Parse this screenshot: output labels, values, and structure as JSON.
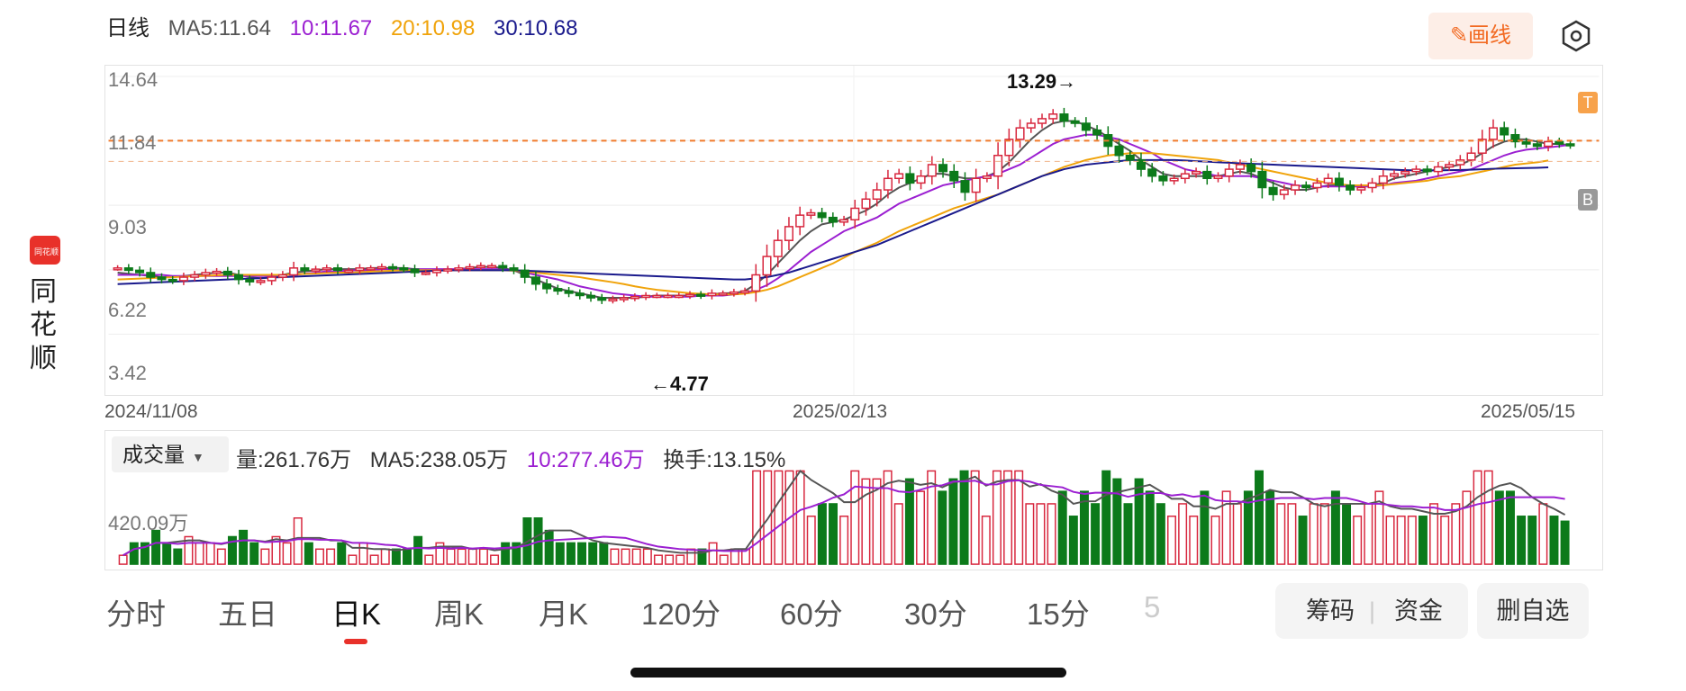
{
  "brand": {
    "logo_text": "同花顺",
    "name": "同花顺"
  },
  "header": {
    "period_label": "日线",
    "ma": [
      {
        "label": "MA5:11.64",
        "color": "#555555"
      },
      {
        "label": "10:11.67",
        "color": "#9b1fd1"
      },
      {
        "label": "20:10.98",
        "color": "#f0a30a"
      },
      {
        "label": "30:10.68",
        "color": "#1a1a8c"
      }
    ],
    "draw_label": "画线",
    "settings_icon": "hexagon-settings-icon"
  },
  "price_axis": {
    "labels": [
      "14.64",
      "11.84",
      "9.03",
      "6.22",
      "3.42"
    ]
  },
  "date_axis": {
    "labels": [
      "2024/11/08",
      "2025/02/13",
      "2025/05/15"
    ]
  },
  "annotations": {
    "high": "13.29→",
    "low": "←4.77",
    "marker_t": "T",
    "marker_b": "B"
  },
  "volume": {
    "selector": "成交量",
    "legend": [
      {
        "label": "量:261.76万",
        "color": "#333333"
      },
      {
        "label": "MA5:238.05万",
        "color": "#333333"
      },
      {
        "label": "10:277.46万",
        "color": "#9b1fd1"
      },
      {
        "label": "换手:13.15%",
        "color": "#333333"
      }
    ],
    "axis_label": "420.09万"
  },
  "tabs": [
    {
      "label": "分时",
      "active": false
    },
    {
      "label": "五日",
      "active": false
    },
    {
      "label": "日K",
      "active": true
    },
    {
      "label": "周K",
      "active": false
    },
    {
      "label": "月K",
      "active": false
    },
    {
      "label": "120分",
      "active": false
    },
    {
      "label": "60分",
      "active": false
    },
    {
      "label": "30分",
      "active": false
    },
    {
      "label": "15分",
      "active": false
    },
    {
      "label": "5",
      "active": false
    }
  ],
  "actions": {
    "chips": "筹码",
    "funds": "资金",
    "remove_watch": "删自选"
  },
  "colors": {
    "up": "#d7263d",
    "down": "#0c7a1a",
    "accent": "#f26a22",
    "ma5": "#555555",
    "ma10": "#9b1fd1",
    "ma20": "#f0a30a",
    "ma30": "#1a1a8c"
  },
  "chart_data": {
    "type": "candlestick",
    "ylim": [
      3.42,
      14.64
    ],
    "y_ticks": [
      14.64,
      11.84,
      9.03,
      6.22,
      3.42
    ],
    "x_ticks": [
      "2024/11/08",
      "2025/02/13",
      "2025/05/15"
    ],
    "reference_line": 11.84,
    "high": 13.29,
    "low": 4.77,
    "close": [
      6.3,
      6.2,
      6.1,
      5.9,
      5.8,
      5.75,
      5.9,
      6.0,
      6.1,
      6.15,
      6.0,
      5.8,
      5.7,
      5.75,
      5.9,
      6.0,
      6.3,
      6.2,
      6.25,
      6.3,
      6.2,
      6.2,
      6.3,
      6.3,
      6.35,
      6.3,
      6.25,
      6.1,
      6.1,
      6.2,
      6.25,
      6.3,
      6.35,
      6.4,
      6.4,
      6.3,
      6.2,
      5.9,
      5.6,
      5.4,
      5.3,
      5.2,
      5.1,
      5.0,
      4.9,
      4.95,
      5.0,
      5.05,
      5.1,
      5.1,
      5.1,
      5.1,
      5.15,
      5.1,
      5.2,
      5.2,
      5.25,
      5.3,
      6.0,
      6.8,
      7.5,
      8.1,
      8.6,
      8.7,
      8.5,
      8.3,
      8.4,
      8.9,
      9.3,
      9.7,
      10.2,
      10.4,
      10.0,
      10.3,
      10.8,
      10.5,
      10.1,
      9.6,
      10.2,
      10.3,
      11.2,
      11.9,
      12.4,
      12.6,
      12.8,
      13.0,
      12.7,
      12.6,
      12.3,
      12.1,
      11.6,
      11.2,
      11.0,
      10.6,
      10.3,
      10.1,
      10.2,
      10.4,
      10.5,
      10.2,
      10.3,
      10.6,
      10.8,
      10.5,
      9.8,
      9.5,
      9.7,
      9.9,
      9.8,
      10.0,
      10.2,
      9.9,
      9.7,
      9.8,
      10.0,
      10.3,
      10.4,
      10.5,
      10.6,
      10.5,
      10.7,
      10.8,
      11.0,
      11.3,
      11.9,
      12.4,
      12.1,
      11.8,
      11.7,
      11.6,
      11.8,
      11.7,
      11.64
    ],
    "series": [
      {
        "name": "MA5",
        "values": [
          6.1,
          6.05,
          6.0,
          5.95,
          5.9,
          5.9,
          5.95,
          6.0,
          6.05,
          6.1,
          6.1,
          6.0,
          5.9,
          5.85,
          5.9,
          6.0,
          6.1,
          6.15,
          6.2,
          6.25,
          6.25,
          6.25,
          6.25,
          6.3,
          6.3,
          6.3,
          6.3,
          6.25,
          6.2,
          6.2,
          6.2,
          6.25,
          6.3,
          6.35,
          6.35,
          6.3,
          6.2,
          6.0,
          5.8,
          5.6,
          5.4,
          5.3,
          5.2,
          5.1,
          5.0,
          5.0,
          5.0,
          5.0,
          5.05,
          5.1,
          5.1,
          5.1,
          5.1,
          5.15,
          5.15,
          5.2,
          5.2,
          5.3,
          5.6,
          6.0,
          6.5,
          7.0,
          7.5,
          7.9,
          8.2,
          8.3,
          8.4,
          8.6,
          8.8,
          9.1,
          9.5,
          9.8,
          10.0,
          10.2,
          10.4,
          10.4,
          10.3,
          10.2,
          10.2,
          10.3,
          10.5,
          10.9,
          11.4,
          11.9,
          12.3,
          12.6,
          12.7,
          12.7,
          12.5,
          12.3,
          12.0,
          11.7,
          11.4,
          11.0,
          10.7,
          10.4,
          10.3,
          10.3,
          10.3,
          10.3,
          10.3,
          10.4,
          10.5,
          10.4,
          10.2,
          10.0,
          9.8,
          9.7,
          9.7,
          9.8,
          9.9,
          9.9,
          9.9,
          9.9,
          9.9,
          10.0,
          10.2,
          10.3,
          10.4,
          10.5,
          10.6,
          10.7,
          10.8,
          11.0,
          11.3,
          11.6,
          11.8,
          11.9,
          11.9,
          11.8,
          11.7,
          11.7,
          11.64
        ]
      },
      {
        "name": "10",
        "values": [
          6.0,
          6.0,
          6.0,
          6.0,
          6.0,
          5.95,
          5.95,
          5.95,
          5.95,
          5.95,
          5.95,
          5.95,
          5.95,
          5.95,
          5.95,
          6.0,
          6.0,
          6.05,
          6.1,
          6.15,
          6.15,
          6.2,
          6.2,
          6.2,
          6.25,
          6.25,
          6.25,
          6.25,
          6.25,
          6.25,
          6.25,
          6.25,
          6.25,
          6.25,
          6.25,
          6.25,
          6.2,
          6.1,
          6.0,
          5.9,
          5.8,
          5.65,
          5.5,
          5.4,
          5.3,
          5.2,
          5.15,
          5.1,
          5.05,
          5.05,
          5.05,
          5.05,
          5.05,
          5.1,
          5.1,
          5.1,
          5.15,
          5.2,
          5.35,
          5.55,
          5.85,
          6.2,
          6.6,
          7.0,
          7.3,
          7.6,
          7.9,
          8.1,
          8.3,
          8.5,
          8.8,
          9.1,
          9.3,
          9.5,
          9.7,
          9.9,
          10.0,
          10.1,
          10.2,
          10.3,
          10.4,
          10.6,
          10.8,
          11.1,
          11.4,
          11.7,
          11.9,
          12.0,
          12.1,
          12.1,
          12.0,
          11.9,
          11.7,
          11.5,
          11.3,
          11.0,
          10.8,
          10.6,
          10.5,
          10.4,
          10.3,
          10.3,
          10.3,
          10.3,
          10.2,
          10.1,
          10.0,
          9.9,
          9.85,
          9.85,
          9.85,
          9.85,
          9.85,
          9.85,
          9.85,
          9.9,
          10.0,
          10.05,
          10.1,
          10.2,
          10.3,
          10.4,
          10.5,
          10.6,
          10.8,
          11.0,
          11.2,
          11.35,
          11.45,
          11.5,
          11.55,
          11.6,
          11.67
        ]
      },
      {
        "name": "20",
        "values": [
          5.8,
          5.82,
          5.84,
          5.86,
          5.88,
          5.9,
          5.92,
          5.94,
          5.96,
          5.98,
          6.0,
          6.0,
          6.0,
          6.0,
          6.0,
          6.0,
          6.02,
          6.04,
          6.06,
          6.08,
          6.1,
          6.1,
          6.12,
          6.14,
          6.16,
          6.18,
          6.2,
          6.2,
          6.2,
          6.2,
          6.2,
          6.2,
          6.2,
          6.2,
          6.2,
          6.2,
          6.18,
          6.14,
          6.1,
          6.05,
          6.0,
          5.95,
          5.9,
          5.82,
          5.75,
          5.68,
          5.6,
          5.5,
          5.42,
          5.35,
          5.3,
          5.25,
          5.2,
          5.18,
          5.15,
          5.15,
          5.15,
          5.18,
          5.25,
          5.35,
          5.5,
          5.7,
          5.9,
          6.1,
          6.3,
          6.5,
          6.75,
          7.0,
          7.2,
          7.4,
          7.65,
          7.9,
          8.1,
          8.3,
          8.5,
          8.7,
          8.9,
          9.05,
          9.2,
          9.35,
          9.5,
          9.7,
          9.9,
          10.1,
          10.3,
          10.5,
          10.7,
          10.85,
          11.0,
          11.1,
          11.2,
          11.25,
          11.3,
          11.3,
          11.3,
          11.25,
          11.2,
          11.15,
          11.1,
          11.05,
          11.0,
          10.9,
          10.8,
          10.7,
          10.6,
          10.5,
          10.4,
          10.3,
          10.2,
          10.1,
          10.0,
          9.95,
          9.9,
          9.9,
          9.9,
          9.9,
          9.95,
          10.0,
          10.05,
          10.1,
          10.2,
          10.25,
          10.3,
          10.4,
          10.5,
          10.6,
          10.7,
          10.8,
          10.85,
          10.9,
          10.98
        ]
      },
      {
        "name": "30",
        "values": [
          5.6,
          5.62,
          5.64,
          5.66,
          5.68,
          5.7,
          5.72,
          5.74,
          5.76,
          5.78,
          5.8,
          5.82,
          5.84,
          5.86,
          5.88,
          5.9,
          5.92,
          5.94,
          5.96,
          5.98,
          6.0,
          6.02,
          6.04,
          6.06,
          6.08,
          6.1,
          6.12,
          6.14,
          6.16,
          6.18,
          6.2,
          6.2,
          6.2,
          6.2,
          6.2,
          6.2,
          6.2,
          6.18,
          6.16,
          6.14,
          6.12,
          6.1,
          6.08,
          6.06,
          6.04,
          6.02,
          6.0,
          5.98,
          5.96,
          5.94,
          5.92,
          5.9,
          5.88,
          5.86,
          5.84,
          5.82,
          5.8,
          5.8,
          5.85,
          5.9,
          6.0,
          6.1,
          6.25,
          6.4,
          6.55,
          6.7,
          6.85,
          7.0,
          7.15,
          7.3,
          7.5,
          7.7,
          7.9,
          8.1,
          8.3,
          8.5,
          8.7,
          8.9,
          9.1,
          9.3,
          9.5,
          9.7,
          9.9,
          10.1,
          10.3,
          10.45,
          10.6,
          10.7,
          10.8,
          10.85,
          10.9,
          10.95,
          11.0,
          11.0,
          11.0,
          11.0,
          11.0,
          10.98,
          10.95,
          10.93,
          10.9,
          10.88,
          10.86,
          10.84,
          10.82,
          10.8,
          10.78,
          10.76,
          10.74,
          10.72,
          10.7,
          10.68,
          10.66,
          10.64,
          10.62,
          10.6,
          10.58,
          10.56,
          10.55,
          10.55,
          10.55,
          10.56,
          10.57,
          10.58,
          10.6,
          10.62,
          10.63,
          10.64,
          10.65,
          10.66,
          10.68
        ]
      }
    ],
    "volume_ylim_label": "420.09万"
  }
}
